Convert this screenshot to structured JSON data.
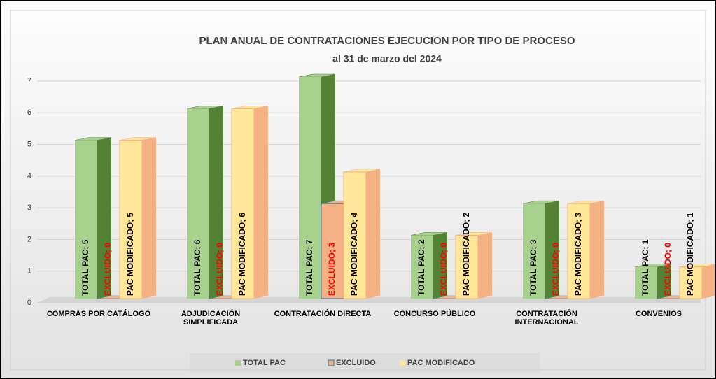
{
  "chart_data": {
    "type": "bar",
    "title": "PLAN ANUAL DE CONTRATACIONES EJECUCION POR TIPO DE PROCESO",
    "subtitle": "al 31 de marzo del 2024",
    "categories": [
      "COMPRAS POR CATÁLOGO",
      "ADJUDICACIÓN SIMPLIFICADA",
      "CONTRATACIÓN DIRECTA",
      "CONCURSO PÚBLICO",
      "CONTRATACIÓN INTERNACIONAL",
      "CONVENIOS"
    ],
    "series": [
      {
        "name": "TOTAL PAC",
        "color": "#a9d18e",
        "side_color": "#548235",
        "label_color": "#000000",
        "values": [
          5,
          6,
          7,
          2,
          3,
          1
        ],
        "value_labels": [
          "TOTAL PAC; 5",
          "TOTAL PAC; 6",
          "TOTAL PAC; 7",
          "TOTAL PAC; 2",
          "TOTAL PAC; 3",
          "TOTAL PAC; 1"
        ]
      },
      {
        "name": "EXCLUIDO",
        "color": "#f4b183",
        "side_color": "#2e75b6",
        "label_color": "#ff0000",
        "values": [
          0,
          0,
          3,
          0,
          0,
          0
        ],
        "value_labels": [
          "EXCLUIDO; 0",
          "EXCLUIDO; 0",
          "EXCLUIDO; 3",
          "EXCLUIDO; 0",
          "EXCLUIDO; 0",
          "EXCLUIDO; 0"
        ]
      },
      {
        "name": "PAC MODIFICADO",
        "color": "#ffe699",
        "side_color": "#f4b183",
        "label_color": "#000000",
        "values": [
          5,
          6,
          4,
          2,
          3,
          1
        ],
        "value_labels": [
          "PAC MODIFICADO; 5",
          "PAC MODIFICADO; 6",
          "PAC MODIFICADO; 4",
          "PAC MODIFICADO; 2",
          "PAC MODIFICADO; 3",
          "PAC MODIFICADO; 1"
        ]
      }
    ],
    "ylim": [
      0,
      7
    ],
    "yticks": [
      0,
      1,
      2,
      3,
      4,
      5,
      6,
      7
    ],
    "grid": true,
    "legend": "bottom"
  }
}
